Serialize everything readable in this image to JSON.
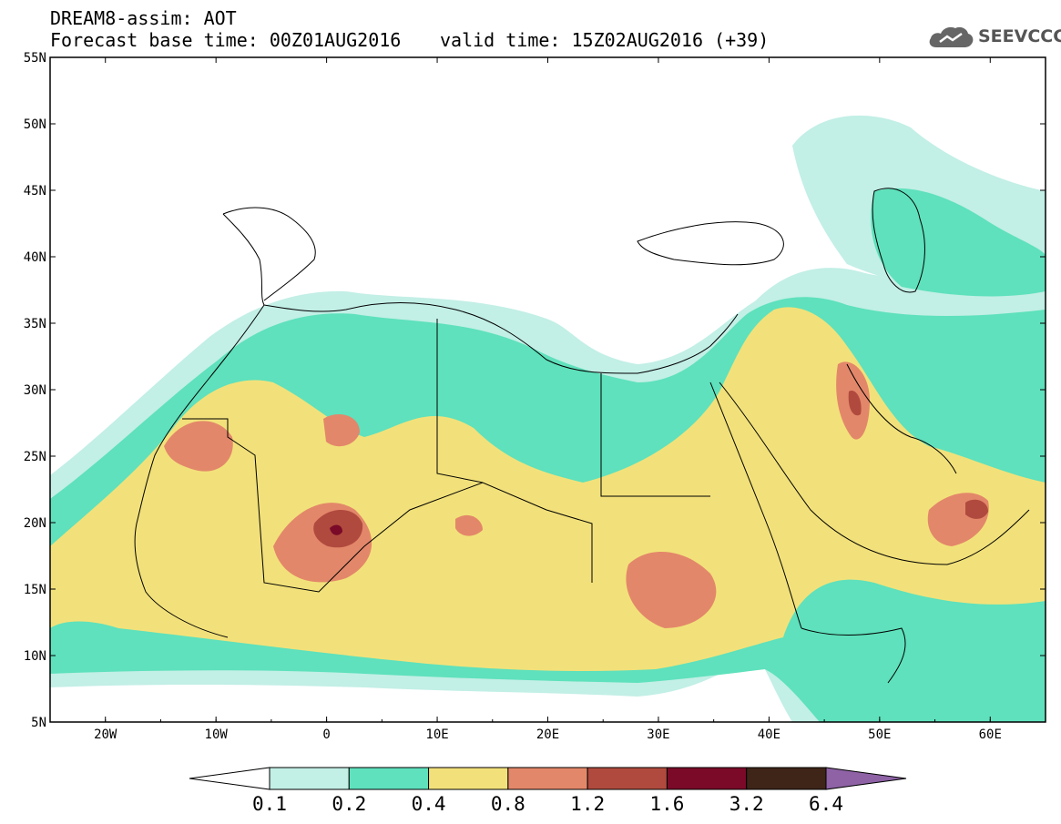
{
  "header": {
    "title_line1": "DREAM8-assim: AOT",
    "title_line2": "Forecast base time: 00Z01AUG2016",
    "valid_time": "valid time: 15Z02AUG2016 (+39)"
  },
  "logo": {
    "text": "SEEVCCC",
    "icon": "cloud-logo-icon"
  },
  "map": {
    "projection": "lat-lon",
    "lon_range": [
      -25,
      65
    ],
    "lat_range": [
      5,
      55
    ],
    "lat_labels": [
      "55N",
      "50N",
      "45N",
      "40N",
      "35N",
      "30N",
      "25N",
      "20N",
      "15N",
      "10N",
      "5N"
    ],
    "lon_labels": [
      "20W",
      "10W",
      "0",
      "10E",
      "20E",
      "30E",
      "40E",
      "50E",
      "60E"
    ],
    "variable": "Aerosol optical thickness (AOT)"
  },
  "colorbar": {
    "labels": [
      "0.1",
      "0.2",
      "0.4",
      "0.8",
      "1.2",
      "1.6",
      "3.2",
      "6.4"
    ],
    "colors": [
      "#ffffff",
      "#c2efe6",
      "#5ee1bc",
      "#f2e17a",
      "#e3876a",
      "#b04a3e",
      "#7a0a28",
      "#3e2518",
      "#8e62a5"
    ]
  }
}
